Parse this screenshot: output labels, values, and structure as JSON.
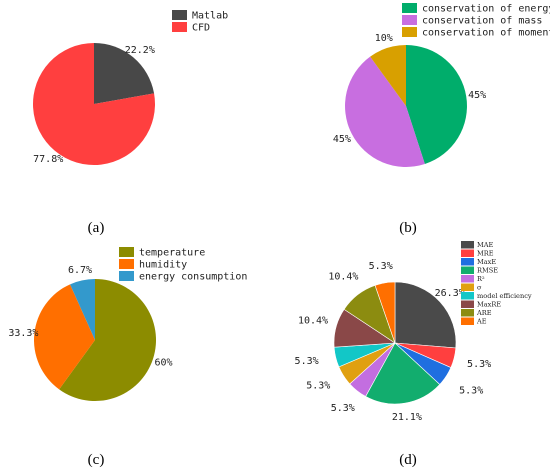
{
  "chart_data": [
    {
      "type": "pie",
      "panel": "(a)",
      "slices": [
        {
          "label": "Matlab",
          "value": 22.2,
          "value_label": "22.2%",
          "color": "#484848"
        },
        {
          "label": "CFD",
          "value": 77.8,
          "value_label": "77.8%",
          "color": "#ff3f3f"
        }
      ]
    },
    {
      "type": "pie",
      "panel": "(b)",
      "slices": [
        {
          "label": "conservation of energy",
          "value": 45,
          "value_label": "45%",
          "color": "#00ad6b"
        },
        {
          "label": "conservation of mass",
          "value": 45,
          "value_label": "45%",
          "color": "#c86ee0"
        },
        {
          "label": "conservation of momentum",
          "value": 10,
          "value_label": "10%",
          "color": "#d8a000"
        }
      ]
    },
    {
      "type": "pie",
      "panel": "(c)",
      "slices": [
        {
          "label": "temperature",
          "value": 60,
          "value_label": "60%",
          "color": "#8c8c00"
        },
        {
          "label": "humidity",
          "value": 33.3,
          "value_label": "33.3%",
          "color": "#ff6f00"
        },
        {
          "label": "energy consumption",
          "value": 6.7,
          "value_label": "6.7%",
          "color": "#3399cc"
        }
      ]
    },
    {
      "type": "pie",
      "panel": "(d)",
      "slices": [
        {
          "label": "MAE",
          "value": 26.3,
          "value_label": "26.3%",
          "color": "#4a4a4a"
        },
        {
          "label": "MRE",
          "value": 5.3,
          "value_label": "5.3%",
          "color": "#ff3f3f"
        },
        {
          "label": "MaxE",
          "value": 5.3,
          "value_label": "5.3%",
          "color": "#1f6fe0"
        },
        {
          "label": "RMSE",
          "value": 21.1,
          "value_label": "21.1%",
          "color": "#12ad6e"
        },
        {
          "label": "R²",
          "value": 5.3,
          "value_label": "5.3%",
          "color": "#c36ee0"
        },
        {
          "label": "σ",
          "value": 5.3,
          "value_label": "5.3%",
          "color": "#e0a010"
        },
        {
          "label": "model efficiency",
          "value": 5.3,
          "value_label": "5.3%",
          "color": "#12c7c7"
        },
        {
          "label": "MaxRE",
          "value": 10.4,
          "value_label": "10.4%",
          "color": "#8a4848"
        },
        {
          "label": "ARE",
          "value": 10.4,
          "value_label": "10.4%",
          "color": "#8c8c10"
        },
        {
          "label": "AE",
          "value": 5.3,
          "value_label": "5.3%",
          "color": "#ff6f00"
        }
      ]
    }
  ]
}
